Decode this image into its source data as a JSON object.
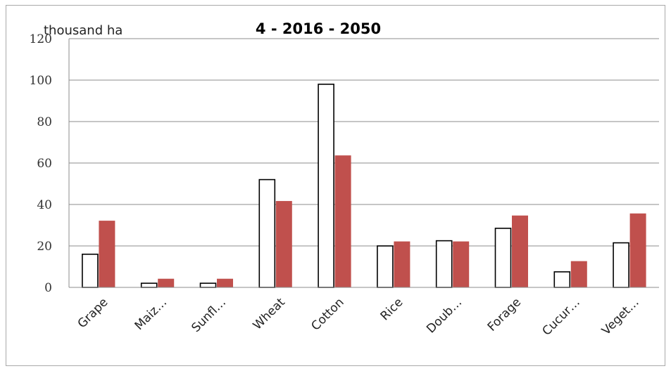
{
  "chart_data": {
    "type": "bar",
    "title": "4 - 2016 - 2050",
    "ylabel": "thousand ha",
    "xlabel": "",
    "ylim": [
      0,
      120
    ],
    "yticks": [
      0,
      20,
      40,
      60,
      80,
      100,
      120
    ],
    "grid": true,
    "legend": "none",
    "categories": [
      "Grape",
      "Maiz…",
      "Sunfl…",
      "Wheat",
      "Cotton",
      "Rice",
      "Doub…",
      "Forage",
      "Cucur…",
      "Veget…"
    ],
    "series": [
      {
        "values": [
          16,
          2,
          2,
          52,
          98,
          20,
          22.5,
          28.5,
          7.5,
          21.5
        ],
        "color": "#ffffff",
        "stroke": "#000000"
      },
      {
        "values": [
          32,
          4,
          4,
          41.5,
          63.5,
          22,
          22,
          34.5,
          12.5,
          35.5
        ],
        "color": "#c0504d",
        "stroke": "#c0504d"
      }
    ]
  }
}
